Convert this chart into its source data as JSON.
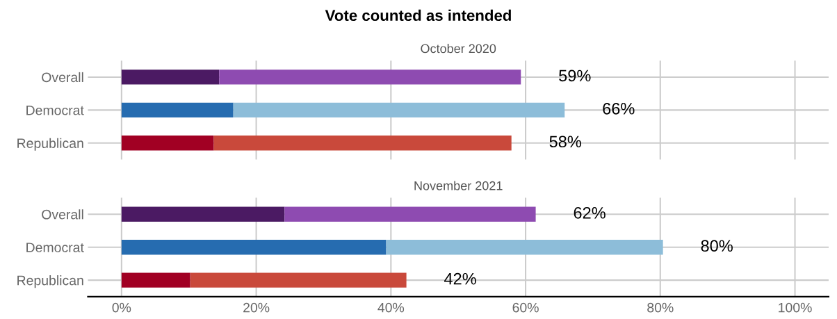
{
  "chart_data": [
    {
      "type": "bar",
      "orientation": "horizontal",
      "stacked": true,
      "title": "Vote counted as intended",
      "subtitle": "October 2020",
      "categories": [
        "Overall",
        "Democrat",
        "Republican"
      ],
      "series": [
        {
          "colors": [
            "#4b1a63",
            "#266cb0",
            "#a10023"
          ],
          "values": [
            14.5,
            16.6,
            13.7
          ]
        },
        {
          "colors": [
            "#8e4bb1",
            "#8dbdd9",
            "#c9493b"
          ],
          "values": [
            44.8,
            49.2,
            44.2
          ]
        }
      ],
      "totals": [
        "59%",
        "66%",
        "58%"
      ],
      "xlim": [
        -5,
        105
      ],
      "xticks": [
        {
          "value": 0,
          "label": null
        },
        {
          "value": 20,
          "label": null
        },
        {
          "value": 40,
          "label": null
        },
        {
          "value": 60,
          "label": null
        },
        {
          "value": 80,
          "label": null
        },
        {
          "value": 100,
          "label": null
        }
      ],
      "grid": true,
      "tick_labels": "y"
    },
    {
      "type": "bar",
      "orientation": "horizontal",
      "stacked": true,
      "subtitle": "November 2021",
      "categories": [
        "Overall",
        "Democrat",
        "Republican"
      ],
      "series": [
        {
          "colors": [
            "#4b1a63",
            "#266cb0",
            "#a10023"
          ],
          "values": [
            24.2,
            39.3,
            10.2
          ]
        },
        {
          "colors": [
            "#8e4bb1",
            "#8dbdd9",
            "#c9493b"
          ],
          "values": [
            37.3,
            41.1,
            32.1
          ]
        }
      ],
      "totals": [
        "62%",
        "80%",
        "42%"
      ],
      "xlim": [
        -5,
        105
      ],
      "xticks": [
        {
          "value": 0,
          "label": "0%"
        },
        {
          "value": 20,
          "label": "20%"
        },
        {
          "value": 40,
          "label": "40%"
        },
        {
          "value": 60,
          "label": "60%"
        },
        {
          "value": 80,
          "label": "80%"
        },
        {
          "value": 100,
          "label": "100%"
        }
      ],
      "grid": true
    }
  ]
}
